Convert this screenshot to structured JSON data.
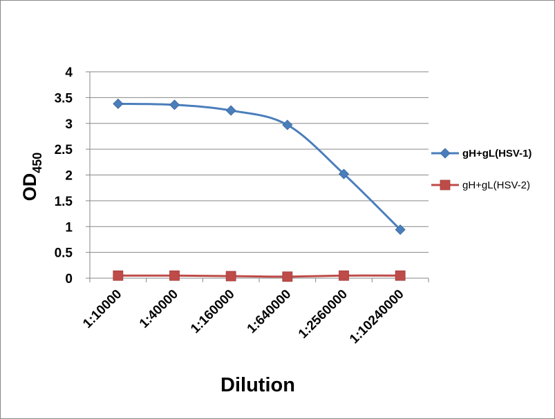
{
  "chart_data": {
    "type": "line",
    "title": "",
    "xlabel": "Dilution",
    "ylabel": {
      "main": "OD",
      "sub": "450"
    },
    "categories": [
      "1:10000",
      "1:40000",
      "1:160000",
      "1:640000",
      "1:2560000",
      "1:10240000"
    ],
    "ylim": [
      0,
      4
    ],
    "yticks": [
      "0",
      "0.5",
      "1",
      "1.5",
      "2",
      "2.5",
      "3",
      "3.5",
      "4"
    ],
    "grid": true,
    "legend_position": "right",
    "series": [
      {
        "name": "gH+gL(HSV-1)",
        "values": [
          3.38,
          3.36,
          3.25,
          2.97,
          2.02,
          0.94
        ],
        "color": "#4a7ebb",
        "marker": "diamond",
        "smooth": true
      },
      {
        "name": "gH+gL(HSV-2)",
        "values": [
          0.05,
          0.05,
          0.04,
          0.03,
          0.05,
          0.05
        ],
        "color": "#be4b48",
        "marker": "square",
        "smooth": true
      }
    ]
  }
}
